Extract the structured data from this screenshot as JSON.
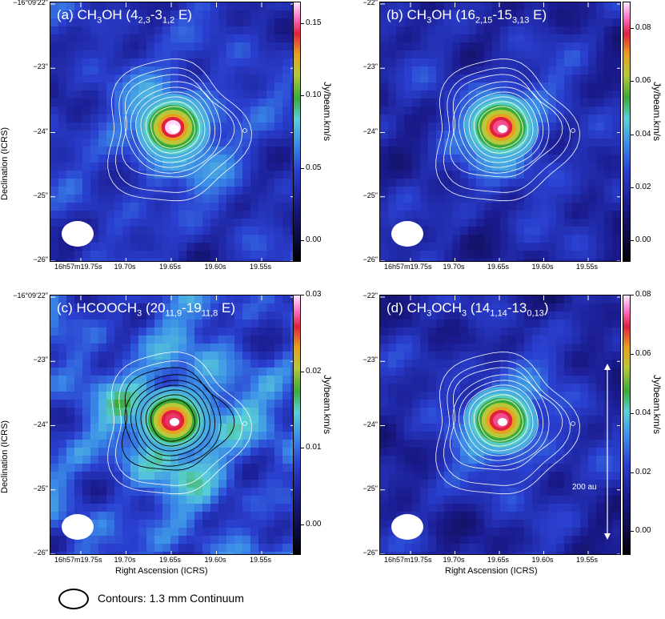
{
  "chart_data": [
    {
      "type": "heatmap",
      "title": "(a) CH3OH (4 2,3 -3 1,2 E)",
      "title_parts": {
        "pre": "(a) CH",
        "s1": "3",
        "mid": "OH (4",
        "s2": "2,3",
        "mid2": "-3",
        "s3": "1,2",
        "post": " E)"
      },
      "colorbar_ticks": [
        "0.00",
        "0.05",
        "0.10",
        "0.15"
      ],
      "colorbar_values": [
        0.0,
        0.05,
        0.1,
        0.15
      ],
      "colorbar_range": [
        -0.015,
        0.165
      ],
      "colorbar_label": "Jy/beam.km/s",
      "xlabel": "",
      "ylabel": "Declination (ICRS)",
      "yticks": [
        "−16°09'22\"",
        "−23\"",
        "−24\"",
        "−25\"",
        "−26\""
      ],
      "xticks": [
        "16h57m19.75s",
        "19.70s",
        "19.65s",
        "19.60s",
        "19.55s"
      ],
      "peak_fraction": 1.0,
      "contour_color": "white"
    },
    {
      "type": "heatmap",
      "title": "(b) CH3OH (16 2,15 -15 3,13 E)",
      "title_parts": {
        "pre": "(b) CH",
        "s1": "3",
        "mid": "OH (16",
        "s2": "2,15",
        "mid2": "-15",
        "s3": "3,13",
        "post": " E)"
      },
      "colorbar_ticks": [
        "0.00",
        "0.02",
        "0.04",
        "0.06",
        "0.08"
      ],
      "colorbar_values": [
        0.0,
        0.02,
        0.04,
        0.06,
        0.08
      ],
      "colorbar_range": [
        -0.008,
        0.09
      ],
      "colorbar_label": "Jy/beam.km/s",
      "xlabel": "",
      "ylabel": "",
      "yticks": [
        "−22\"",
        "−23\"",
        "−24\"",
        "−25\"",
        "−26\""
      ],
      "xticks": [
        "16h57m19.75s",
        "19.70s",
        "19.65s",
        "19.60s",
        "19.55s"
      ],
      "peak_fraction": 0.92,
      "contour_color": "white"
    },
    {
      "type": "heatmap",
      "title": "(c) HCOOCH3 (20 11,9 -19 11,8 E)",
      "title_parts": {
        "pre": "(c) HCOOCH",
        "s1": "3",
        "mid": " (20",
        "s2": "11,9",
        "mid2": "-19",
        "s3": "11,8",
        "post": " E)"
      },
      "colorbar_ticks": [
        "0.00",
        "0.01",
        "0.02",
        "0.03"
      ],
      "colorbar_values": [
        0.0,
        0.01,
        0.02,
        0.03
      ],
      "colorbar_range": [
        -0.004,
        0.03
      ],
      "colorbar_label": "Jy/beam.km/s",
      "xlabel": "Right Ascension (ICRS)",
      "ylabel": "Declination (ICRS)",
      "yticks": [
        "−16°09'22\"",
        "−23\"",
        "−24\"",
        "−25\"",
        "−26\""
      ],
      "xticks": [
        "16h57m19.75s",
        "19.70s",
        "19.65s",
        "19.60s",
        "19.55s"
      ],
      "peak_fraction": 0.9,
      "contour_color": "black"
    },
    {
      "type": "heatmap",
      "title": "(d) CH3OCH3 (14 1,14 -13 0,13 )",
      "title_parts": {
        "pre": "(d) CH",
        "s1": "3",
        "mid": "OCH",
        "s2": "3",
        "mid2": " (14",
        "s3": "1,14",
        "post": "-13",
        "s4": "0,13",
        "post2": ")"
      },
      "colorbar_ticks": [
        "0.00",
        "0.02",
        "0.04",
        "0.06",
        "0.08"
      ],
      "colorbar_values": [
        0.0,
        0.02,
        0.04,
        0.06,
        0.08
      ],
      "colorbar_range": [
        -0.008,
        0.08
      ],
      "colorbar_label": "Jy/beam.km/s",
      "xlabel": "Right Ascension (ICRS)",
      "ylabel": "",
      "yticks": [
        "−22\"",
        "−23\"",
        "−24\"",
        "−25\"",
        "−26\""
      ],
      "xticks": [
        "16h57m19.75s",
        "19.70s",
        "19.65s",
        "19.60s",
        "19.55s"
      ],
      "peak_fraction": 0.92,
      "contour_color": "white",
      "scale_bar_label": "200 au"
    }
  ],
  "legend": {
    "text": "Contours: 1.3 mm Continuum"
  },
  "colors": {
    "contour_white": "#ffffff",
    "contour_black": "#000000",
    "beam": "#ffffff"
  }
}
